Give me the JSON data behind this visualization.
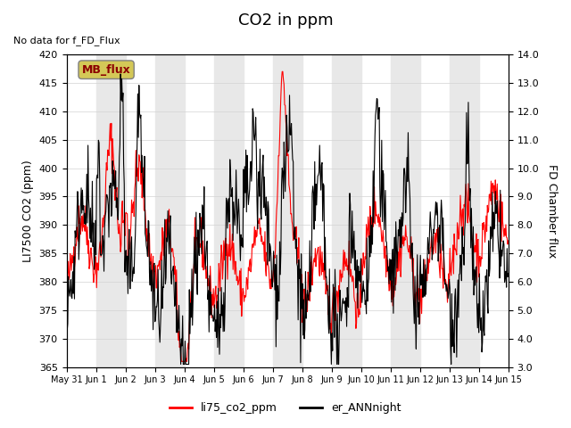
{
  "title": "CO2 in ppm",
  "top_left_text": "No data for f_FD_Flux",
  "ylabel_left": "LI7500 CO2 (ppm)",
  "ylabel_right": "FD Chamber flux",
  "ylim_left": [
    365,
    420
  ],
  "ylim_right": [
    3.0,
    14.0
  ],
  "yticks_left": [
    365,
    370,
    375,
    380,
    385,
    390,
    395,
    400,
    405,
    410,
    415,
    420
  ],
  "yticks_right": [
    3.0,
    4.0,
    5.0,
    6.0,
    7.0,
    8.0,
    9.0,
    10.0,
    11.0,
    12.0,
    13.0,
    14.0
  ],
  "xtick_labels": [
    "May 31",
    "Jun 1",
    "Jun 2",
    "Jun 3",
    "Jun 4",
    "Jun 5",
    "Jun 6",
    "Jun 7",
    "Jun 8",
    "Jun 9",
    "Jun 10",
    "Jun 11",
    "Jun 12",
    "Jun 13",
    "Jun 14",
    "Jun 15"
  ],
  "band_color": "#e8e8e8",
  "mb_flux_box_color": "#d4c857",
  "mb_flux_text": "MB_flux",
  "legend_labels": [
    "li75_co2_ppm",
    "er_ANNnight"
  ],
  "legend_colors": [
    "red",
    "black"
  ],
  "line1_color": "red",
  "line2_color": "black",
  "title_fontsize": 13,
  "label_fontsize": 9,
  "tick_fontsize": 8
}
